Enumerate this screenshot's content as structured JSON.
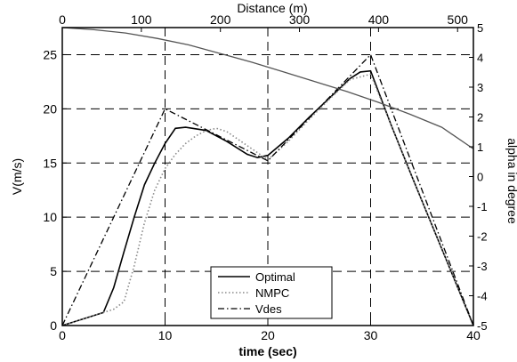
{
  "chart_data": {
    "type": "line",
    "xlabel": "time (sec)",
    "ylabel": "V(m/s)",
    "x2label": "Distance (m)",
    "y2label": "alpha in degree",
    "xlim": [
      0,
      40
    ],
    "ylim": [
      0,
      27.5
    ],
    "x2lim": [
      0,
      520
    ],
    "y2lim": [
      -5,
      5
    ],
    "x_ticks": [
      0,
      10,
      20,
      30,
      40
    ],
    "y_ticks": [
      0,
      5,
      10,
      15,
      20,
      25
    ],
    "x2_ticks": [
      0,
      100,
      200,
      300,
      400,
      500
    ],
    "y2_ticks": [
      -5,
      -4,
      -3,
      -2,
      -1,
      0,
      1,
      2,
      3,
      4,
      5
    ],
    "grid_x": [
      10,
      20,
      30
    ],
    "grid_y": [
      5,
      10,
      15,
      20,
      25
    ],
    "legend_position": "bottom-center",
    "series": [
      {
        "name": "Optimal",
        "style": "solid",
        "color": "#000000",
        "x": [
          0,
          4,
          5,
          6,
          7,
          8,
          9,
          10,
          11,
          12,
          14,
          16,
          18,
          19,
          20,
          22,
          24,
          26,
          28,
          29,
          30,
          32,
          34,
          36,
          38,
          40
        ],
        "y": [
          0,
          1.2,
          3.5,
          6.8,
          10.0,
          13.0,
          15.0,
          16.8,
          18.2,
          18.3,
          18.0,
          17.0,
          15.8,
          15.5,
          15.7,
          17.3,
          19.2,
          21.0,
          22.8,
          23.4,
          23.5,
          18.5,
          13.8,
          9.2,
          4.6,
          0
        ]
      },
      {
        "name": "NMPC",
        "style": "dotted",
        "color": "#888888",
        "x": [
          0,
          5,
          6,
          7,
          8,
          9,
          10,
          11,
          12,
          13,
          14,
          15,
          16,
          18,
          20,
          22,
          24,
          26,
          28,
          30,
          32,
          34,
          36,
          38,
          40
        ],
        "y": [
          0,
          1.5,
          2.2,
          5.5,
          9.5,
          12.5,
          14.5,
          15.8,
          16.8,
          17.5,
          18.0,
          18.2,
          17.9,
          16.6,
          15.3,
          17.0,
          19.0,
          20.9,
          22.7,
          23.2,
          18.5,
          13.8,
          9.2,
          4.6,
          0
        ]
      },
      {
        "name": "Vdes",
        "style": "dashdot",
        "color": "#000000",
        "x": [
          0,
          10,
          20,
          30,
          40
        ],
        "y": [
          0,
          20.0,
          15.2,
          25.0,
          0
        ]
      },
      {
        "name": "",
        "style": "solid",
        "color": "#555555",
        "axis": "x2",
        "x": [
          0,
          40,
          80,
          120,
          160,
          200,
          240,
          280,
          320,
          360,
          400,
          440,
          480,
          520
        ],
        "y": [
          27.5,
          27.3,
          27.0,
          26.5,
          25.9,
          25.1,
          24.3,
          23.4,
          22.5,
          21.6,
          20.6,
          19.5,
          18.3,
          16.3
        ]
      }
    ]
  }
}
